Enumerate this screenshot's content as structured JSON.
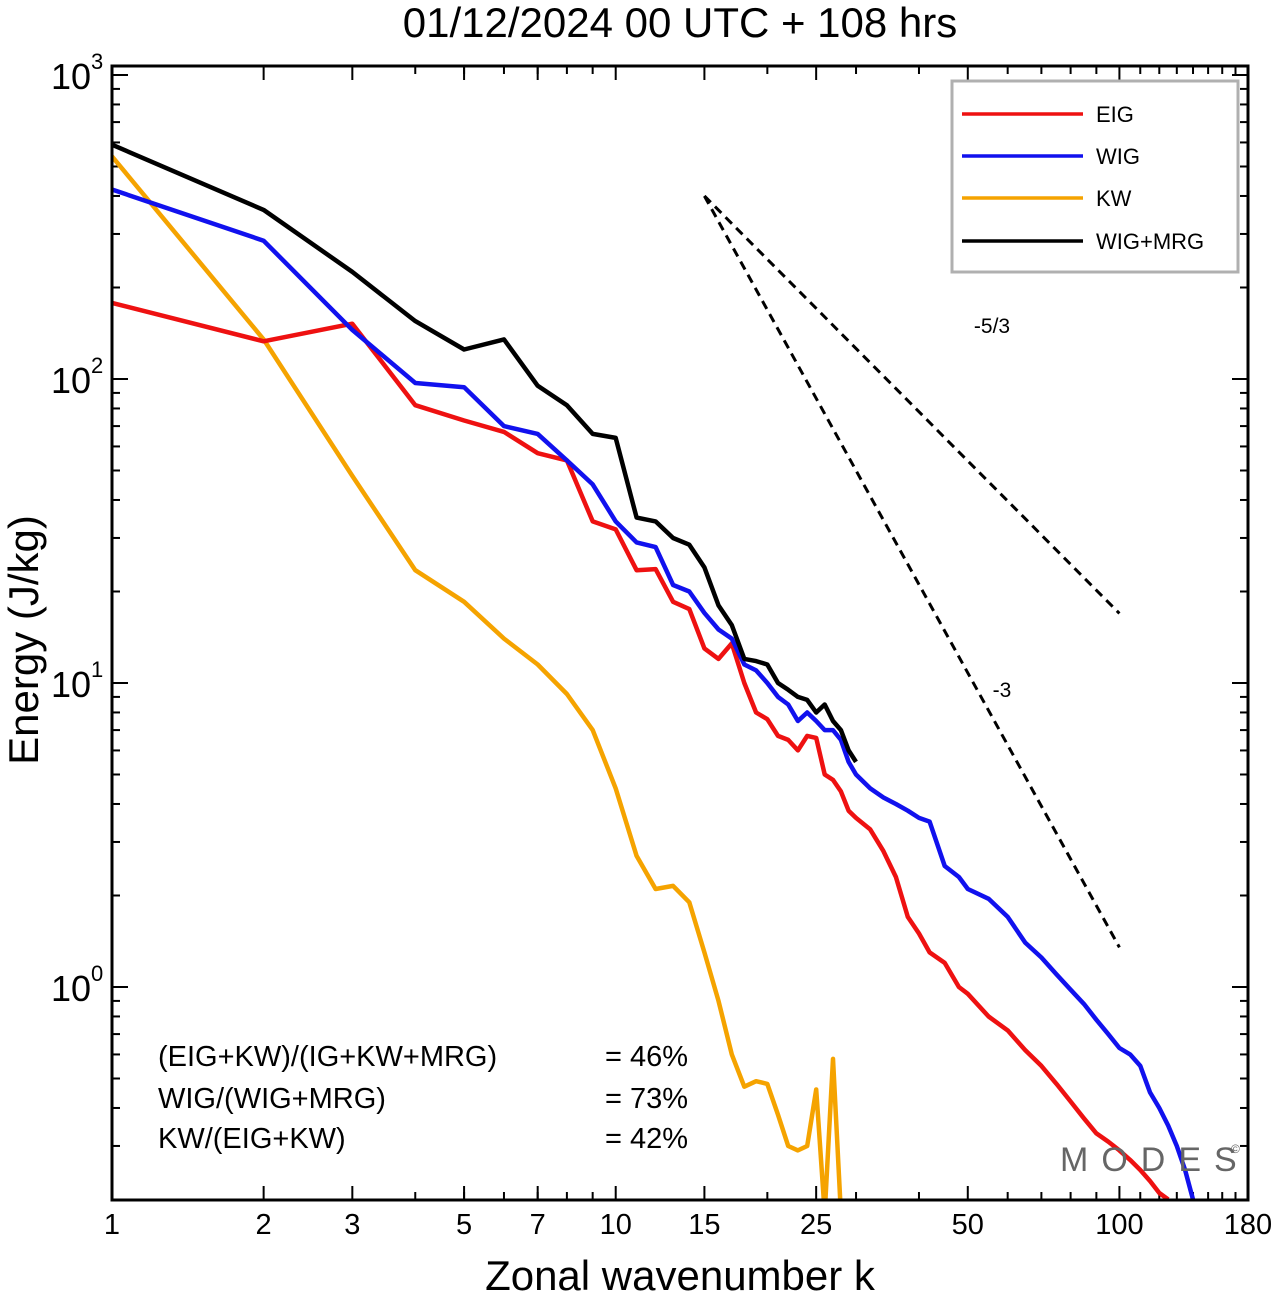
{
  "chart_data": {
    "type": "line",
    "title": "01/12/2024  00 UTC  + 108 hrs",
    "xlabel": "Zonal wavenumber k",
    "ylabel": "Energy (J/kg)",
    "xscale": "log",
    "yscale": "log",
    "xlim": [
      1,
      180
    ],
    "ylim": [
      0.2,
      1100
    ],
    "x_ticks": [
      1,
      2,
      3,
      5,
      7,
      10,
      15,
      25,
      50,
      100,
      180
    ],
    "x_tick_labels": [
      "1",
      "2",
      "3",
      "5",
      "7",
      "10",
      "15",
      "25",
      "50",
      "100",
      "180"
    ],
    "y_ticks": [
      {
        "base": "10",
        "exp": "0",
        "value": 1
      },
      {
        "base": "10",
        "exp": "1",
        "value": 10
      },
      {
        "base": "10",
        "exp": "2",
        "value": 100
      },
      {
        "base": "10",
        "exp": "3",
        "value": 1000
      }
    ],
    "grid": false,
    "legend_position": "top-right",
    "series": [
      {
        "name": "EIG",
        "color": "#ee1111",
        "x": [
          1,
          2,
          3,
          4,
          5,
          6,
          7,
          8,
          9,
          10,
          11,
          12,
          13,
          14,
          15,
          16,
          17,
          18,
          19,
          20,
          21,
          22,
          23,
          24,
          25,
          26,
          27,
          28,
          29,
          30,
          32,
          34,
          36,
          38,
          40,
          42,
          45,
          48,
          50,
          55,
          60,
          65,
          70,
          75,
          80,
          85,
          90,
          95,
          100,
          105,
          110,
          115,
          120,
          125
        ],
        "y": [
          178,
          133,
          152,
          82,
          73,
          67,
          57,
          54,
          34,
          32,
          23.5,
          23.7,
          18.5,
          17.5,
          13,
          12,
          13.5,
          10,
          8,
          7.6,
          6.7,
          6.5,
          6,
          6.7,
          6.6,
          5,
          4.8,
          4.4,
          3.8,
          3.6,
          3.3,
          2.8,
          2.3,
          1.7,
          1.5,
          1.3,
          1.2,
          1.0,
          0.95,
          0.8,
          0.72,
          0.62,
          0.55,
          0.48,
          0.42,
          0.37,
          0.33,
          0.31,
          0.29,
          0.27,
          0.25,
          0.23,
          0.21,
          0.2
        ]
      },
      {
        "name": "WIG",
        "color": "#1111ee",
        "x": [
          1,
          2,
          3,
          4,
          5,
          6,
          7,
          8,
          9,
          10,
          11,
          12,
          13,
          14,
          15,
          16,
          17,
          18,
          19,
          20,
          21,
          22,
          23,
          24,
          25,
          26,
          27,
          28,
          29,
          30,
          32,
          34,
          36,
          38,
          40,
          42,
          45,
          48,
          50,
          55,
          60,
          65,
          70,
          75,
          80,
          85,
          90,
          95,
          100,
          105,
          110,
          115,
          120,
          125,
          130,
          135,
          140
        ],
        "y": [
          420,
          285,
          145,
          97,
          94,
          70,
          66,
          54,
          45,
          34,
          29,
          28,
          21,
          20,
          17,
          15,
          14,
          11.5,
          11,
          10,
          9,
          8.5,
          7.5,
          8,
          7.5,
          7,
          7,
          6.5,
          5.5,
          5,
          4.5,
          4.2,
          4,
          3.8,
          3.6,
          3.5,
          2.5,
          2.3,
          2.1,
          1.95,
          1.7,
          1.4,
          1.25,
          1.1,
          0.98,
          0.88,
          0.78,
          0.7,
          0.63,
          0.6,
          0.55,
          0.45,
          0.4,
          0.35,
          0.3,
          0.25,
          0.2
        ]
      },
      {
        "name": "KW",
        "color": "#f5a300",
        "x": [
          1,
          2,
          3,
          4,
          5,
          6,
          7,
          8,
          9,
          10,
          11,
          12,
          13,
          14,
          15,
          16,
          17,
          18,
          19,
          20,
          21,
          22,
          23,
          24,
          25,
          26,
          27,
          28
        ],
        "y": [
          540,
          135,
          48,
          23.5,
          18.5,
          14,
          11.5,
          9.2,
          7,
          4.5,
          2.7,
          2.1,
          2.15,
          1.9,
          1.3,
          0.9,
          0.6,
          0.47,
          0.49,
          0.48,
          0.38,
          0.3,
          0.29,
          0.3,
          0.46,
          0.18,
          0.58,
          0.18
        ]
      },
      {
        "name": "WIG+MRG",
        "color": "#000000",
        "x": [
          1,
          2,
          3,
          4,
          5,
          6,
          7,
          8,
          9,
          10,
          11,
          12,
          13,
          14,
          15,
          16,
          17,
          18,
          19,
          20,
          21,
          22,
          23,
          24,
          25,
          26,
          27,
          28,
          29,
          30
        ],
        "y": [
          590,
          360,
          225,
          155,
          125,
          135,
          95,
          82,
          66,
          64,
          35,
          34,
          30,
          28.5,
          24,
          18,
          15.5,
          12,
          11.8,
          11.5,
          10,
          9.5,
          9,
          8.8,
          8,
          8.5,
          7.5,
          7,
          6,
          5.5
        ]
      }
    ],
    "annotations": {
      "slope_lines": [
        {
          "label": "-5/3",
          "slope": -1.6667
        },
        {
          "label": "-3",
          "slope": -3
        }
      ],
      "ratios": [
        {
          "label": "(EIG+KW)/(IG+KW+MRG)",
          "value": "= 46%"
        },
        {
          "label": "WIG/(WIG+MRG)",
          "value": "= 73%"
        },
        {
          "label": "KW/(EIG+KW)",
          "value": "= 42%"
        }
      ],
      "watermark": "MODES",
      "watermark_mark": "©"
    }
  }
}
